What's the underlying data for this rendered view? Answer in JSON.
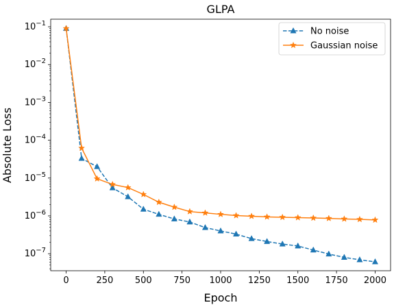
{
  "chart_data": {
    "type": "line",
    "title": "GLPA",
    "xlabel": "Epoch",
    "ylabel": "Absolute Loss",
    "xlim": [
      -100,
      2100
    ],
    "ylim_log10": [
      -7.45,
      -0.8
    ],
    "yscale": "log",
    "grid": false,
    "legend_position": "top-right",
    "x_ticks": [
      0,
      250,
      500,
      750,
      1000,
      1250,
      1500,
      1750,
      2000
    ],
    "x_tick_labels": [
      "0",
      "250",
      "500",
      "750",
      "1000",
      "1250",
      "1500",
      "1750",
      "2000"
    ],
    "y_tick_exponents": [
      -1,
      -2,
      -3,
      -4,
      -5,
      -6,
      -7
    ],
    "y_tick_base": "10",
    "series": [
      {
        "name": "No noise",
        "color": "#1f77b4",
        "line_style": "dashed",
        "marker": "triangle",
        "x": [
          0,
          100,
          200,
          300,
          400,
          500,
          600,
          700,
          800,
          900,
          1000,
          1100,
          1200,
          1300,
          1400,
          1500,
          1600,
          1700,
          1800,
          1900,
          2000
        ],
        "y": [
          0.09,
          3.3e-05,
          2e-05,
          5.5e-06,
          3.2e-06,
          1.5e-06,
          1.1e-06,
          8.3e-07,
          6.9e-07,
          4.9e-07,
          4e-07,
          3.3e-07,
          2.5e-07,
          2.1e-07,
          1.8e-07,
          1.6e-07,
          1.25e-07,
          9.8e-08,
          8e-08,
          6.9e-08,
          6.1e-08
        ]
      },
      {
        "name": "Gaussian noise",
        "color": "#ff7f0e",
        "line_style": "solid",
        "marker": "star",
        "x": [
          0,
          100,
          200,
          300,
          400,
          500,
          600,
          700,
          800,
          900,
          1000,
          1100,
          1200,
          1300,
          1400,
          1500,
          1600,
          1700,
          1800,
          1900,
          2000
        ],
        "y": [
          0.09,
          6.2e-05,
          9.6e-06,
          6.8e-06,
          5.6e-06,
          3.7e-06,
          2.3e-06,
          1.7e-06,
          1.3e-06,
          1.2e-06,
          1.1e-06,
          1.02e-06,
          9.8e-07,
          9.4e-07,
          9.2e-07,
          9e-07,
          8.8e-07,
          8.6e-07,
          8.3e-07,
          8.1e-07,
          7.8e-07
        ]
      }
    ]
  }
}
